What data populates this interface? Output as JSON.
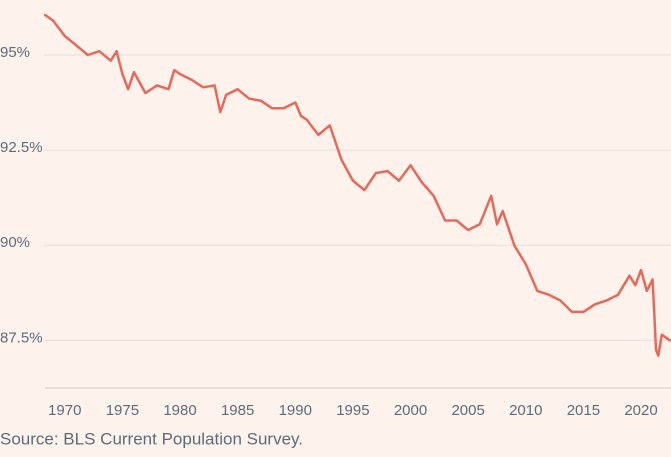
{
  "chart_data": {
    "type": "line",
    "source": "Source: BLS Current Population Survey.",
    "x": [
      1968.3,
      1969,
      1970,
      1971,
      1972,
      1973,
      1974,
      1974.5,
      1975,
      1975.5,
      1976,
      1977,
      1978,
      1979,
      1979.5,
      1980,
      1981,
      1982,
      1983,
      1983.5,
      1984,
      1985,
      1986,
      1987,
      1988,
      1989,
      1990,
      1990.5,
      1991,
      1992,
      1993,
      1994,
      1995,
      1996,
      1997,
      1998,
      1999,
      2000,
      2001,
      2002,
      2003,
      2004,
      2005,
      2006,
      2007,
      2007.5,
      2008,
      2009,
      2010,
      2011,
      2012,
      2013,
      2014,
      2015,
      2016,
      2017,
      2018,
      2019,
      2019.5,
      2020,
      2020.5,
      2021,
      2021.3,
      2021.5,
      2021.8,
      2022.5
    ],
    "series": [
      {
        "color": "#e8695a",
        "values": [
          96.05,
          95.9,
          95.5,
          95.25,
          95.0,
          95.1,
          94.85,
          95.1,
          94.5,
          94.1,
          94.55,
          94.0,
          94.2,
          94.1,
          94.6,
          94.5,
          94.35,
          94.15,
          94.2,
          93.5,
          93.95,
          94.1,
          93.85,
          93.8,
          93.6,
          93.6,
          93.75,
          93.4,
          93.3,
          92.9,
          93.15,
          92.25,
          91.7,
          91.45,
          91.9,
          91.95,
          91.7,
          92.1,
          91.65,
          91.3,
          90.65,
          90.65,
          90.4,
          90.55,
          91.3,
          90.55,
          90.9,
          90.0,
          89.5,
          88.8,
          88.7,
          88.55,
          88.25,
          88.25,
          88.45,
          88.55,
          88.7,
          89.2,
          88.95,
          89.35,
          88.8,
          89.1,
          87.25,
          87.1,
          87.65,
          87.5
        ]
      }
    ],
    "xlim": [
      1968.2,
      2022.6
    ],
    "xticks": [
      1970,
      1975,
      1980,
      1985,
      1990,
      1995,
      2000,
      2005,
      2010,
      2015,
      2020
    ],
    "ylim": [
      86.25,
      96.05
    ],
    "yticks": [
      {
        "value": 87.5,
        "label": "87.5%"
      },
      {
        "value": 90,
        "label": "90%"
      },
      {
        "value": 92.5,
        "label": "92.5%"
      },
      {
        "value": 95,
        "label": "95%"
      }
    ],
    "grid": true
  }
}
